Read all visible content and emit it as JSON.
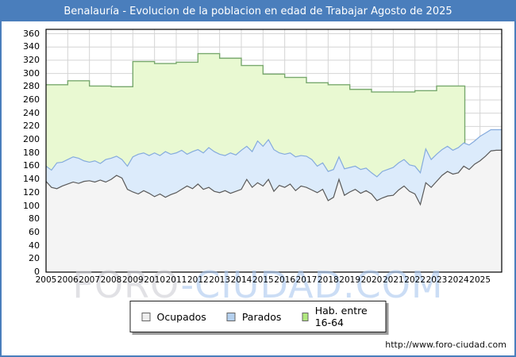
{
  "window": {
    "title": "Benalauría - Evolucion de la poblacion en edad de Trabajar Agosto de 2025",
    "url": "http://www.foro-ciudad.com"
  },
  "watermark": {
    "part1": "FORO",
    "part2": "-CIUDAD.COM"
  },
  "colors": {
    "frame_blue": "#4a7ebc",
    "grid": "#d4d4d4",
    "plot_border": "#000000",
    "hab_fill": "#e9f9d2",
    "hab_stroke": "#79a96e",
    "parados_fill": "#dcebfb",
    "parados_stroke": "#85abdd",
    "ocupados_fill": "#f4f4f4",
    "ocupados_stroke": "#5a5a5a"
  },
  "legend": [
    {
      "label": "Ocupados",
      "swatch": "#ededed"
    },
    {
      "label": "Parados",
      "swatch": "#b4d0ee"
    },
    {
      "label": "Hab. entre 16-64",
      "swatch": "#b0e87e"
    }
  ],
  "chart_data": {
    "type": "area",
    "title": "Benalauría - Evolucion de la poblacion en edad de Trabajar Agosto de 2025",
    "xlabel": "",
    "ylabel": "",
    "x_axis": {
      "ticks": [
        2005,
        2006,
        2007,
        2008,
        2009,
        2010,
        2011,
        2012,
        2013,
        2014,
        2015,
        2016,
        2017,
        2018,
        2019,
        2020,
        2021,
        2022,
        2023,
        2024,
        2025
      ],
      "min": 2005,
      "max": 2026
    },
    "y_axis": {
      "min": 0,
      "max": 360,
      "step": 20,
      "ticks": [
        0,
        20,
        40,
        60,
        80,
        100,
        120,
        140,
        160,
        180,
        200,
        220,
        240,
        260,
        280,
        300,
        320,
        340,
        360
      ]
    },
    "grid": true,
    "legend_position": "bottom",
    "series": [
      {
        "name": "Hab. entre 16-64",
        "kind": "annual_step_area",
        "years": [
          2005,
          2006,
          2007,
          2008,
          2009,
          2010,
          2011,
          2012,
          2013,
          2014,
          2015,
          2016,
          2017,
          2018,
          2019,
          2020,
          2021,
          2022,
          2023,
          2024
        ],
        "values": [
          283,
          289,
          281,
          280,
          318,
          315,
          317,
          330,
          323,
          312,
          299,
          294,
          286,
          283,
          276,
          272,
          272,
          274,
          281,
          281
        ],
        "end_x": 2024.3
      },
      {
        "name": "Ocupados",
        "kind": "monthly_area_base",
        "x_start": 2005.0,
        "x_step": 0.25,
        "values": [
          137,
          128,
          126,
          130,
          133,
          136,
          134,
          137,
          138,
          136,
          139,
          136,
          140,
          146,
          142,
          125,
          121,
          118,
          123,
          119,
          114,
          118,
          113,
          117,
          120,
          125,
          130,
          126,
          133,
          125,
          128,
          122,
          120,
          123,
          119,
          122,
          125,
          140,
          128,
          135,
          130,
          140,
          122,
          131,
          128,
          133,
          123,
          130,
          128,
          124,
          120,
          125,
          108,
          113,
          140,
          116,
          121,
          125,
          119,
          123,
          118,
          108,
          112,
          115,
          116,
          124,
          130,
          122,
          118,
          102,
          135,
          128,
          137,
          146,
          152,
          148,
          150,
          160,
          155,
          163,
          168,
          175,
          183,
          184
        ]
      },
      {
        "name": "Parados",
        "kind": "stacked_on_ocupados",
        "x_start": 2005.0,
        "x_step": 0.25,
        "values": [
          23,
          26,
          39,
          36,
          37,
          38,
          38,
          31,
          28,
          32,
          25,
          34,
          32,
          29,
          28,
          35,
          53,
          60,
          57,
          57,
          66,
          58,
          69,
          61,
          60,
          59,
          48,
          56,
          52,
          55,
          60,
          60,
          58,
          53,
          61,
          55,
          59,
          50,
          54,
          63,
          60,
          60,
          63,
          49,
          50,
          47,
          51,
          46,
          47,
          46,
          40,
          40,
          44,
          42,
          34,
          40,
          37,
          35,
          36,
          34,
          32,
          36,
          40,
          40,
          42,
          41,
          40,
          40,
          42,
          48,
          51,
          42,
          41,
          39,
          38,
          36,
          38,
          35,
          37,
          35,
          37,
          35,
          32,
          31
        ]
      }
    ]
  }
}
